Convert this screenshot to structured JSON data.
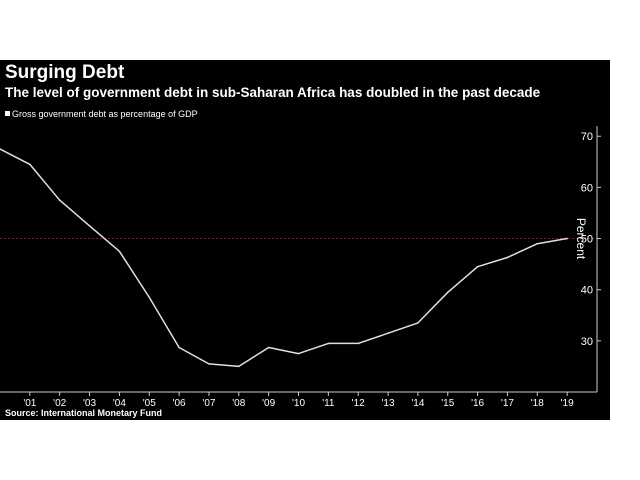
{
  "title": "Surging Debt",
  "subtitle": "The level of government debt in sub-Saharan Africa has doubled in the past decade",
  "source": "Source: International Monetary Fund",
  "colors": {
    "background": "#000000",
    "line": "#e0e0e0",
    "text": "#ffffff",
    "reference_line": "#8b1a1a"
  },
  "chart_data": {
    "type": "line",
    "xlabel": "",
    "ylabel": "Percent",
    "x": [
      2000,
      2001,
      2002,
      2003,
      2004,
      2005,
      2006,
      2007,
      2008,
      2009,
      2010,
      2011,
      2012,
      2013,
      2014,
      2015,
      2016,
      2017,
      2018,
      2019
    ],
    "xtick_values": [
      2001,
      2002,
      2003,
      2004,
      2005,
      2006,
      2007,
      2008,
      2009,
      2010,
      2011,
      2012,
      2013,
      2014,
      2015,
      2016,
      2017,
      2018,
      2019
    ],
    "xtick_labels": [
      "'01",
      "'02",
      "'03",
      "'04",
      "'05",
      "'06",
      "'07",
      "'08",
      "'09",
      "'10",
      "'11",
      "'12",
      "'13",
      "'14",
      "'15",
      "'16",
      "'17",
      "'18",
      "'19"
    ],
    "xlim": [
      2000,
      2020
    ],
    "ylim": [
      20,
      72
    ],
    "yticks": [
      30,
      40,
      50,
      60,
      70
    ],
    "reference_y": 50,
    "grid": false,
    "legend_position": "top-left",
    "series": [
      {
        "name": "Gross government debt as percentage of GDP",
        "values": [
          67.5,
          64.5,
          57.5,
          52.5,
          47.5,
          38.5,
          28.7,
          25.5,
          25.0,
          28.7,
          27.5,
          29.5,
          29.5,
          31.5,
          33.5,
          39.5,
          44.5,
          46.3,
          49.0,
          50.0
        ]
      }
    ]
  }
}
